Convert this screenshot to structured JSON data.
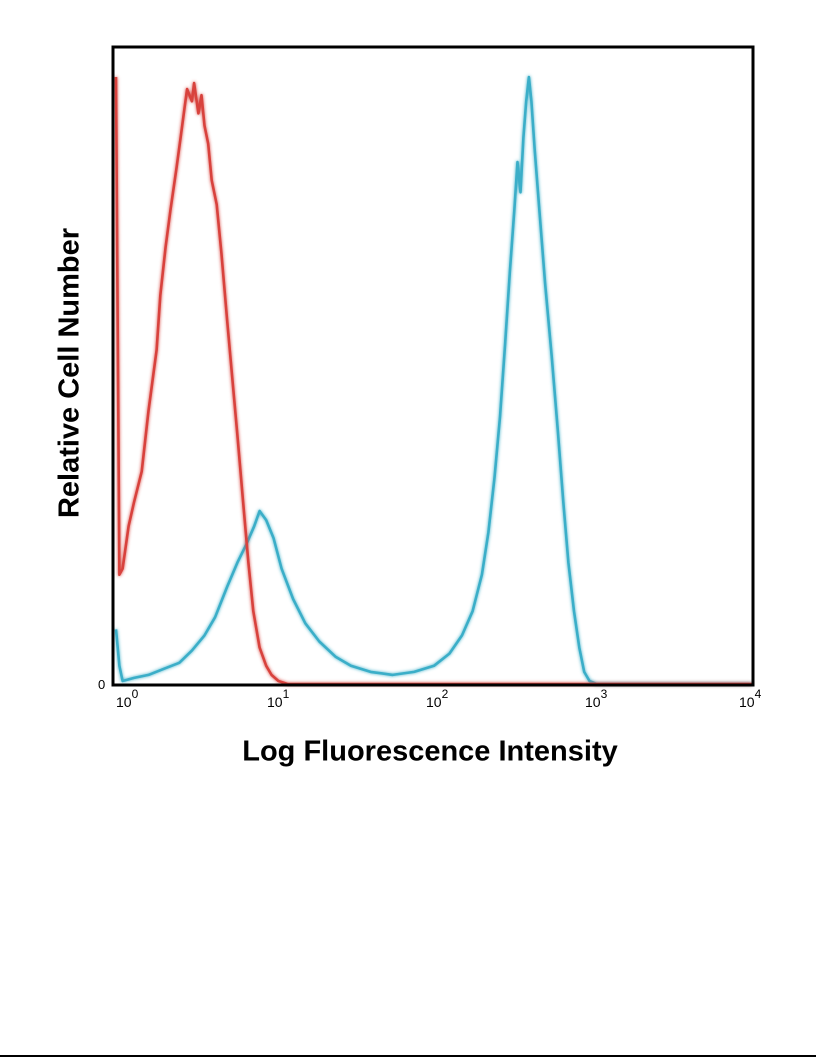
{
  "chart_data": {
    "type": "line",
    "xlabel": "Log Fluorescence Intensity",
    "ylabel": "Relative Cell Number",
    "x_scale": "log",
    "xlim": [
      1,
      10000
    ],
    "ylim": [
      0,
      100
    ],
    "y_tick_labels": [
      "0"
    ],
    "x_ticks": [
      {
        "base": "10",
        "exp": "0"
      },
      {
        "base": "10",
        "exp": "1"
      },
      {
        "base": "10",
        "exp": "2"
      },
      {
        "base": "10",
        "exp": "3"
      },
      {
        "base": "10",
        "exp": "4"
      }
    ],
    "grid": false,
    "series": [
      {
        "color": "#d8423c",
        "points": [
          [
            1.0,
            100
          ],
          [
            1.05,
            18
          ],
          [
            1.1,
            19
          ],
          [
            1.2,
            26
          ],
          [
            1.3,
            30
          ],
          [
            1.45,
            35
          ],
          [
            1.6,
            45
          ],
          [
            1.8,
            55
          ],
          [
            1.9,
            64
          ],
          [
            2.05,
            72
          ],
          [
            2.2,
            78
          ],
          [
            2.4,
            85
          ],
          [
            2.55,
            90
          ],
          [
            2.7,
            95
          ],
          [
            2.8,
            98
          ],
          [
            3.0,
            96
          ],
          [
            3.1,
            99
          ],
          [
            3.3,
            94
          ],
          [
            3.45,
            97
          ],
          [
            3.6,
            92
          ],
          [
            3.8,
            89
          ],
          [
            4.0,
            83
          ],
          [
            4.3,
            79
          ],
          [
            4.6,
            71
          ],
          [
            5.0,
            60
          ],
          [
            5.4,
            50
          ],
          [
            5.8,
            41
          ],
          [
            6.3,
            30
          ],
          [
            6.8,
            20
          ],
          [
            7.3,
            12
          ],
          [
            8.0,
            6
          ],
          [
            8.8,
            3
          ],
          [
            9.5,
            1.5
          ],
          [
            10.5,
            0.5
          ],
          [
            12,
            0
          ],
          [
            10000,
            0
          ]
        ]
      },
      {
        "color": "#3aaec8",
        "points": [
          [
            1.0,
            9
          ],
          [
            1.05,
            3
          ],
          [
            1.1,
            0.5
          ],
          [
            1.3,
            1
          ],
          [
            1.6,
            1.5
          ],
          [
            2.0,
            2.5
          ],
          [
            2.5,
            3.5
          ],
          [
            3.0,
            5.5
          ],
          [
            3.6,
            8
          ],
          [
            4.2,
            11
          ],
          [
            5.0,
            16
          ],
          [
            5.8,
            20
          ],
          [
            6.6,
            23
          ],
          [
            7.4,
            26
          ],
          [
            8.0,
            28.5
          ],
          [
            8.8,
            27
          ],
          [
            9.8,
            24
          ],
          [
            11,
            19
          ],
          [
            13,
            14
          ],
          [
            15.5,
            10
          ],
          [
            19,
            7
          ],
          [
            24,
            4.5
          ],
          [
            30,
            3
          ],
          [
            40,
            2
          ],
          [
            55,
            1.5
          ],
          [
            75,
            2
          ],
          [
            100,
            3
          ],
          [
            125,
            5
          ],
          [
            150,
            8
          ],
          [
            175,
            12
          ],
          [
            200,
            18
          ],
          [
            220,
            25
          ],
          [
            240,
            34
          ],
          [
            260,
            44
          ],
          [
            280,
            56
          ],
          [
            300,
            68
          ],
          [
            320,
            78
          ],
          [
            335,
            86
          ],
          [
            350,
            81
          ],
          [
            365,
            90
          ],
          [
            380,
            96
          ],
          [
            395,
            100
          ],
          [
            410,
            96
          ],
          [
            430,
            88
          ],
          [
            460,
            78
          ],
          [
            500,
            66
          ],
          [
            550,
            54
          ],
          [
            600,
            42
          ],
          [
            650,
            30
          ],
          [
            700,
            20
          ],
          [
            760,
            12
          ],
          [
            820,
            6
          ],
          [
            880,
            2
          ],
          [
            950,
            0.5
          ],
          [
            1050,
            0
          ],
          [
            10000,
            0
          ]
        ]
      }
    ]
  }
}
